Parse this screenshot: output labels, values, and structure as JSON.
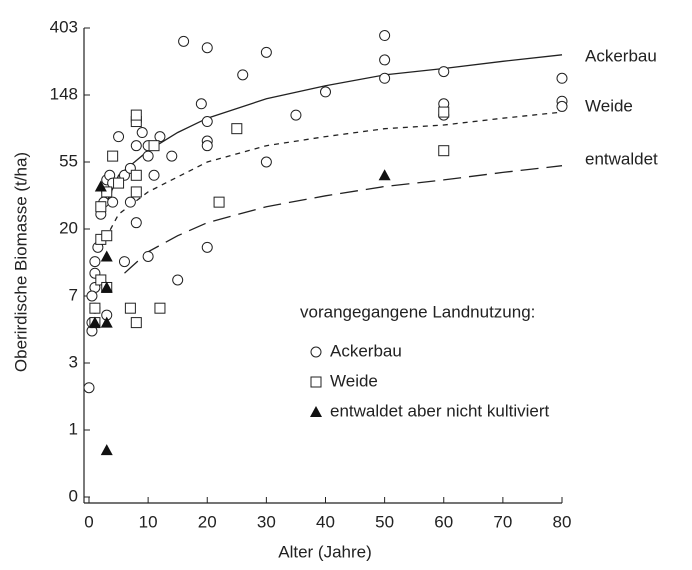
{
  "chart_data": {
    "type": "scatter",
    "xlabel": "Alter (Jahre)",
    "ylabel": "Oberirdische Biomasse (t/ha)",
    "xlim": [
      0,
      80
    ],
    "xticks": [
      0,
      10,
      20,
      30,
      40,
      50,
      60,
      70,
      80
    ],
    "ylim": [
      0,
      403
    ],
    "yticks": [
      0,
      1,
      3,
      7,
      20,
      55,
      148,
      403
    ],
    "yscale": "log",
    "legend_title": "vorangegangene Landnutzung:",
    "series": [
      {
        "name": "Ackerbau",
        "marker": "circle",
        "color": "#222222",
        "x": [
          0,
          0.5,
          0.5,
          1,
          1,
          1,
          1.5,
          2,
          2.5,
          3,
          3,
          3.5,
          4,
          4,
          5,
          6,
          7,
          7,
          8,
          8,
          9,
          10,
          10,
          11,
          12,
          14,
          16,
          19,
          20,
          20,
          20,
          20,
          26,
          30,
          30,
          35,
          40,
          50,
          50,
          50,
          60,
          60,
          60,
          80,
          80,
          80,
          6,
          8,
          10,
          15,
          20,
          3,
          1,
          0.5
        ],
        "values": [
          2,
          4.5,
          5,
          8,
          10,
          12,
          15,
          25,
          30,
          35,
          42,
          45,
          30,
          40,
          80,
          45,
          30,
          50,
          70,
          100,
          85,
          60,
          70,
          45,
          80,
          60,
          330,
          130,
          100,
          75,
          70,
          300,
          200,
          280,
          55,
          110,
          155,
          360,
          250,
          190,
          210,
          130,
          110,
          190,
          135,
          125,
          12,
          22,
          13,
          9,
          15,
          5.5,
          6,
          7
        ]
      },
      {
        "name": "Weide",
        "marker": "square",
        "color": "#222222",
        "x": [
          1,
          1,
          2,
          2,
          3,
          3,
          2,
          3,
          4,
          5,
          7,
          8,
          8,
          8,
          8,
          8,
          11,
          12,
          22,
          25,
          60,
          60
        ],
        "values": [
          5,
          6,
          9,
          17,
          18,
          8,
          28,
          35,
          60,
          40,
          6,
          5,
          35,
          45,
          100,
          110,
          70,
          6,
          30,
          90,
          115,
          65
        ]
      },
      {
        "name": "entwaldet aber nicht kultiviert",
        "marker": "triangle",
        "color": "#111111",
        "x": [
          3,
          1,
          3,
          3,
          3,
          2,
          50
        ],
        "values": [
          0.7,
          5,
          5,
          13,
          8,
          38,
          45
        ]
      }
    ],
    "lines": [
      {
        "name": "Ackerbau",
        "dash": "none",
        "x": [
          3,
          5,
          10,
          15,
          20,
          30,
          40,
          50,
          60,
          70,
          80
        ],
        "values": [
          30,
          45,
          65,
          85,
          105,
          140,
          170,
          200,
          220,
          245,
          270
        ]
      },
      {
        "name": "Weide",
        "dash": "5 5",
        "x": [
          2,
          5,
          10,
          20,
          30,
          40,
          50,
          60,
          70,
          80
        ],
        "values": [
          15,
          25,
          35,
          55,
          70,
          80,
          90,
          95,
          105,
          115
        ]
      },
      {
        "name": "entwaldet",
        "dash": "18 8",
        "x": [
          6,
          10,
          15,
          20,
          30,
          40,
          50,
          60,
          70,
          80
        ],
        "values": [
          10,
          14,
          18,
          22,
          28,
          33,
          38,
          42,
          47,
          52
        ]
      }
    ]
  }
}
